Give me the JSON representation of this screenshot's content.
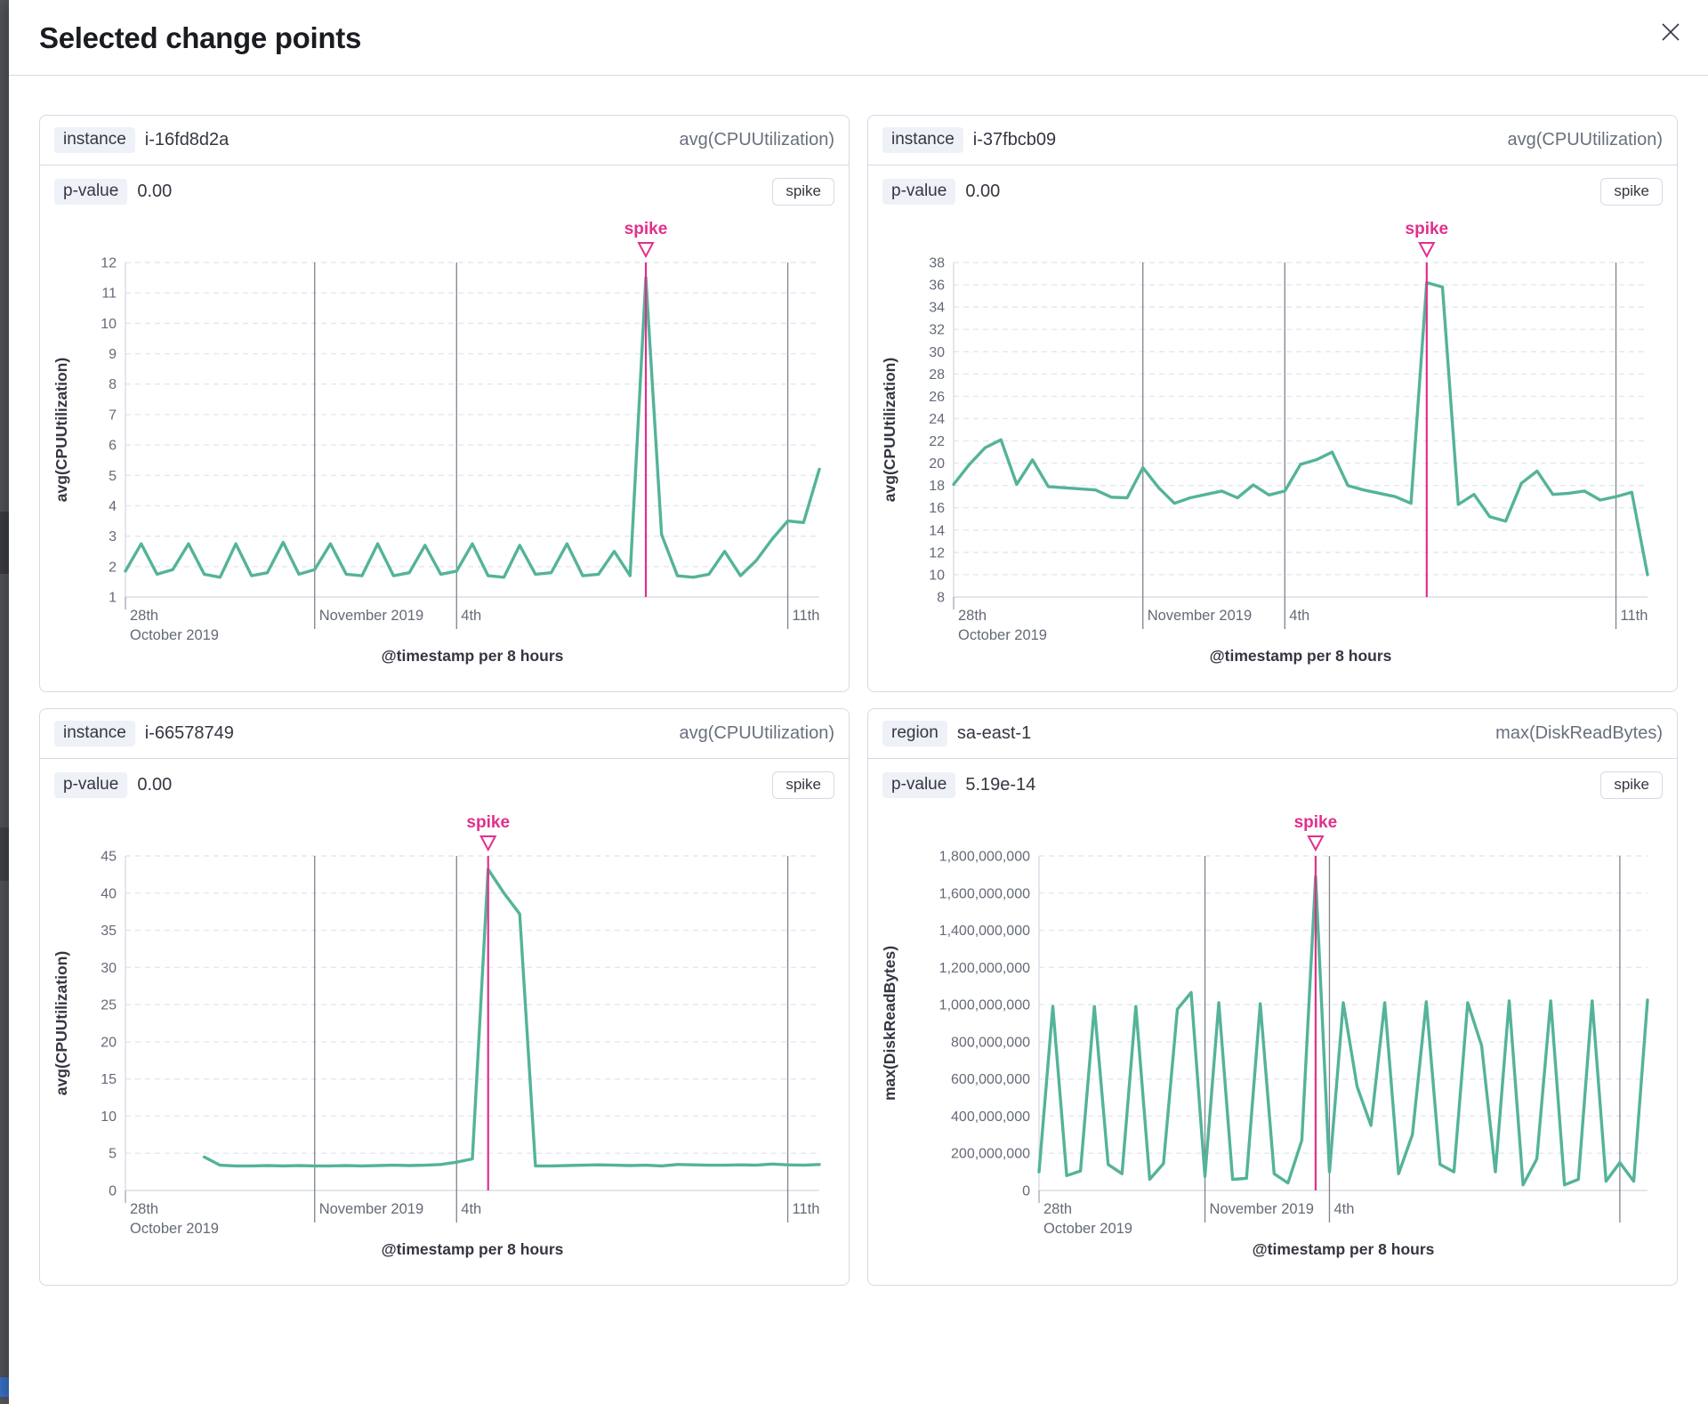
{
  "dialog": {
    "title": "Selected change points",
    "close_icon": "close-icon"
  },
  "colors": {
    "series_green": "#54B399",
    "spike_pink": "#E0308C",
    "date_gridline": "#7E838E",
    "dashed_gridline": "#E3E7F0",
    "axis_line": "#D0D6E0",
    "tick_text": "#646A77",
    "axis_title_text": "#343741"
  },
  "panels": [
    {
      "field_label": "instance",
      "field_value": "i-16fd8d2a",
      "metric": "avg(CPUUtilization)",
      "p_value_label": "p-value",
      "p_value": "0.00",
      "change_type": "spike",
      "chart_data": {
        "type": "line",
        "xlabel": "@timestamp per 8 hours",
        "ylabel": "avg(CPUUtilization)",
        "ylim": [
          1,
          12
        ],
        "y_step": 1,
        "y_tick_format": "plain",
        "grid": true,
        "legend": "none",
        "x_gridline_indices": [
          12,
          21,
          42
        ],
        "x_axis_labels": [
          {
            "index": 0,
            "lines": [
              "28th",
              "October 2019"
            ]
          },
          {
            "index": 12,
            "lines": [
              "November 2019"
            ]
          },
          {
            "index": 21,
            "lines": [
              "4th"
            ]
          },
          {
            "index": 42,
            "lines": [
              "11th"
            ]
          }
        ],
        "annotation": {
          "label": "spike",
          "index": 33
        },
        "values": [
          1.85,
          2.75,
          1.75,
          1.9,
          2.75,
          1.75,
          1.65,
          2.75,
          1.7,
          1.8,
          2.8,
          1.75,
          1.9,
          2.75,
          1.75,
          1.7,
          2.75,
          1.7,
          1.8,
          2.7,
          1.75,
          1.85,
          2.75,
          1.7,
          1.65,
          2.7,
          1.75,
          1.8,
          2.75,
          1.7,
          1.75,
          2.5,
          1.7,
          11.5,
          3.05,
          1.7,
          1.65,
          1.75,
          2.5,
          1.7,
          2.2,
          2.9,
          3.5,
          3.45,
          5.2
        ]
      }
    },
    {
      "field_label": "instance",
      "field_value": "i-37fbcb09",
      "metric": "avg(CPUUtilization)",
      "p_value_label": "p-value",
      "p_value": "0.00",
      "change_type": "spike",
      "chart_data": {
        "type": "line",
        "xlabel": "@timestamp per 8 hours",
        "ylabel": "avg(CPUUtilization)",
        "ylim": [
          8,
          38
        ],
        "y_step": 2,
        "y_tick_format": "plain",
        "grid": true,
        "legend": "none",
        "x_gridline_indices": [
          12,
          21,
          42
        ],
        "x_axis_labels": [
          {
            "index": 0,
            "lines": [
              "28th",
              "October 2019"
            ]
          },
          {
            "index": 12,
            "lines": [
              "November 2019"
            ]
          },
          {
            "index": 21,
            "lines": [
              "4th"
            ]
          },
          {
            "index": 42,
            "lines": [
              "11th"
            ]
          }
        ],
        "annotation": {
          "label": "spike",
          "index": 30
        },
        "values": [
          18.1,
          19.9,
          21.4,
          22.1,
          18.1,
          20.3,
          17.9,
          17.8,
          17.7,
          17.6,
          16.95,
          16.9,
          19.6,
          17.8,
          16.4,
          16.9,
          17.2,
          17.5,
          16.9,
          18.05,
          17.15,
          17.5,
          19.9,
          20.3,
          21.0,
          18.0,
          17.6,
          17.3,
          17.0,
          16.4,
          36.2,
          35.8,
          16.3,
          17.2,
          15.2,
          14.8,
          18.2,
          19.3,
          17.2,
          17.3,
          17.5,
          16.7,
          17.0,
          17.4,
          10.0
        ]
      }
    },
    {
      "field_label": "instance",
      "field_value": "i-66578749",
      "metric": "avg(CPUUtilization)",
      "p_value_label": "p-value",
      "p_value": "0.00",
      "change_type": "spike",
      "chart_data": {
        "type": "line",
        "xlabel": "@timestamp per 8 hours",
        "ylabel": "avg(CPUUtilization)",
        "ylim": [
          0,
          45
        ],
        "y_step": 5,
        "y_tick_format": "plain",
        "grid": true,
        "legend": "none",
        "x_gridline_indices": [
          12,
          21,
          42
        ],
        "x_axis_labels": [
          {
            "index": 0,
            "lines": [
              "28th",
              "October 2019"
            ]
          },
          {
            "index": 12,
            "lines": [
              "November 2019"
            ]
          },
          {
            "index": 21,
            "lines": [
              "4th"
            ]
          },
          {
            "index": 42,
            "lines": [
              "11th"
            ]
          }
        ],
        "annotation": {
          "label": "spike",
          "index": 23
        },
        "values": [
          null,
          null,
          null,
          null,
          null,
          4.5,
          3.4,
          3.3,
          3.3,
          3.35,
          3.3,
          3.35,
          3.3,
          3.3,
          3.35,
          3.3,
          3.35,
          3.4,
          3.35,
          3.4,
          3.5,
          3.8,
          4.25,
          43.2,
          40.0,
          37.2,
          3.3,
          3.3,
          3.35,
          3.4,
          3.45,
          3.4,
          3.35,
          3.4,
          3.3,
          3.5,
          3.45,
          3.4,
          3.4,
          3.45,
          3.4,
          3.55,
          3.45,
          3.4,
          3.5
        ]
      }
    },
    {
      "field_label": "region",
      "field_value": "sa-east-1",
      "metric": "max(DiskReadBytes)",
      "p_value_label": "p-value",
      "p_value": "5.19e-14",
      "change_type": "spike",
      "chart_data": {
        "type": "line",
        "xlabel": "@timestamp per 8 hours",
        "ylabel": "max(DiskReadBytes)",
        "ylim": [
          0,
          1800000000
        ],
        "y_step": 200000000,
        "y_tick_format": "comma",
        "grid": true,
        "legend": "none",
        "x_gridline_indices": [
          12,
          21,
          42
        ],
        "x_axis_labels": [
          {
            "index": 0,
            "lines": [
              "28th",
              "October 2019"
            ]
          },
          {
            "index": 12,
            "lines": [
              "November 2019"
            ]
          },
          {
            "index": 21,
            "lines": [
              "4th"
            ]
          }
        ],
        "annotation": {
          "label": "spike",
          "index": 20
        },
        "values": [
          100000000,
          990000000,
          80000000,
          105000000,
          990000000,
          140000000,
          90000000,
          990000000,
          60000000,
          145000000,
          975000000,
          1065000000,
          75000000,
          1010000000,
          60000000,
          65000000,
          1005000000,
          90000000,
          40000000,
          270000000,
          1690000000,
          100000000,
          1010000000,
          560000000,
          350000000,
          1010000000,
          90000000,
          300000000,
          1015000000,
          140000000,
          100000000,
          1010000000,
          780000000,
          100000000,
          1020000000,
          30000000,
          170000000,
          1020000000,
          30000000,
          60000000,
          1020000000,
          50000000,
          150000000,
          50000000,
          1025000000
        ]
      }
    }
  ]
}
